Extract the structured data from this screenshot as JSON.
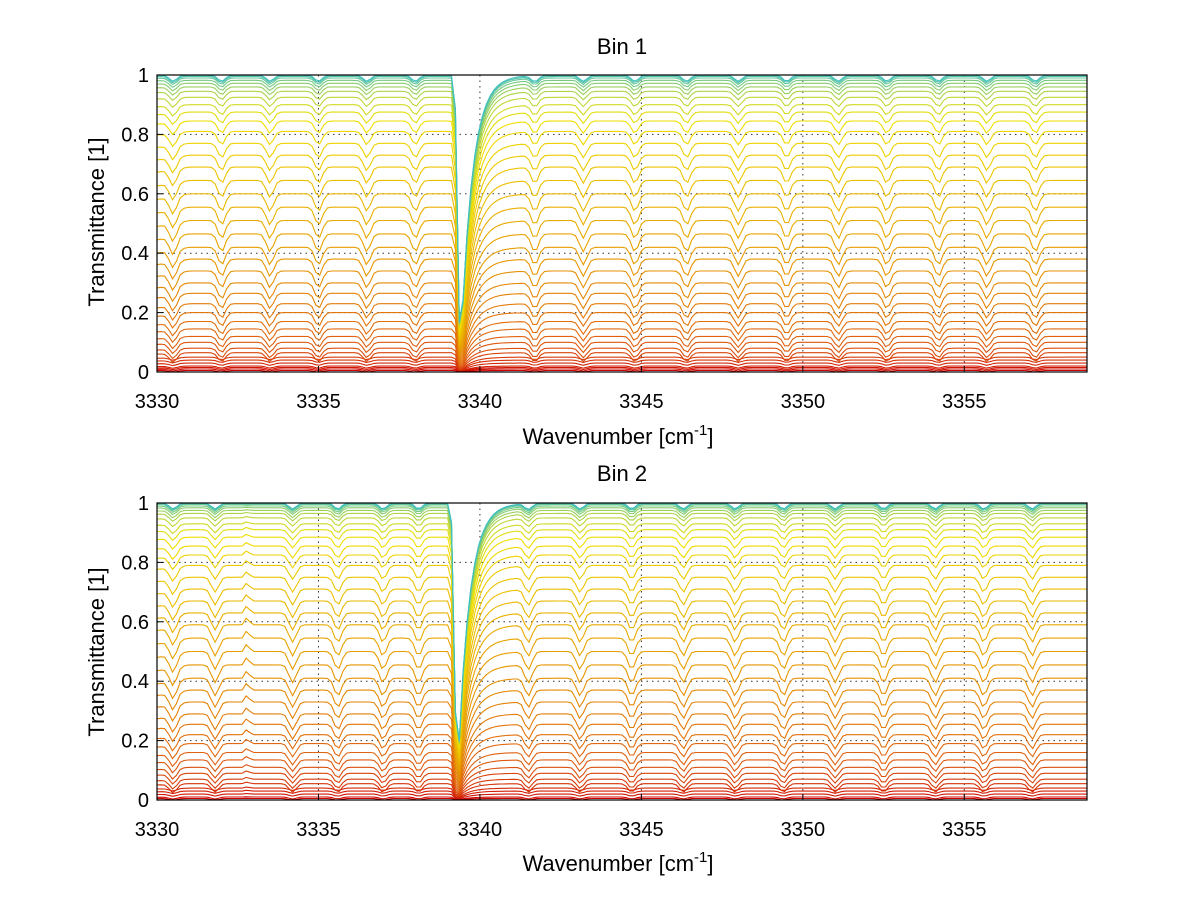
{
  "chart_data": [
    {
      "type": "line",
      "title": "Bin 1",
      "xlabel": "Wavenumber [cm",
      "xlabel_sup": "-1",
      "xlabel_end": "]",
      "ylabel": "Transmittance [1]",
      "xlim": [
        3330,
        3358.8
      ],
      "ylim": [
        0,
        1
      ],
      "xticks": [
        3330,
        3335,
        3340,
        3345,
        3350,
        3355
      ],
      "yticks": [
        0,
        0.2,
        0.4,
        0.6,
        0.8,
        1
      ],
      "ytick_labels": [
        "0",
        "0.2",
        "0.4",
        "0.6",
        "0.8",
        "1"
      ],
      "grid": true,
      "series_count": 40,
      "baseline_levels": [
        0.005,
        0.01,
        0.015,
        0.02,
        0.03,
        0.04,
        0.05,
        0.065,
        0.08,
        0.1,
        0.12,
        0.145,
        0.17,
        0.2,
        0.23,
        0.265,
        0.3,
        0.34,
        0.38,
        0.42,
        0.465,
        0.51,
        0.555,
        0.6,
        0.645,
        0.69,
        0.73,
        0.77,
        0.81,
        0.845,
        0.875,
        0.9,
        0.925,
        0.945,
        0.96,
        0.972,
        0.982,
        0.99,
        0.995,
        0.999
      ],
      "strong_absorption_center": 3339.4,
      "weak_lines": [
        3330.5,
        3332.0,
        3333.5,
        3335.0,
        3336.5,
        3338.0,
        3341.7,
        3343.2,
        3344.8,
        3346.4,
        3348.0,
        3349.5,
        3351.1,
        3352.6,
        3354.2,
        3355.7,
        3357.2
      ],
      "colormap": [
        "#cc0000",
        "#e06010",
        "#e8a000",
        "#f0e000",
        "#40c0c0"
      ]
    },
    {
      "type": "line",
      "title": "Bin 2",
      "xlabel": "Wavenumber [cm",
      "xlabel_sup": "-1",
      "xlabel_end": "]",
      "ylabel": "Transmittance [1]",
      "xlim": [
        3330,
        3358.8
      ],
      "ylim": [
        0,
        1
      ],
      "xticks": [
        3330,
        3335,
        3340,
        3345,
        3350,
        3355
      ],
      "yticks": [
        0,
        0.2,
        0.4,
        0.6,
        0.8,
        1
      ],
      "ytick_labels": [
        "0",
        "0.2",
        "0.4",
        "0.6",
        "0.8",
        "1"
      ],
      "grid": true,
      "series_count": 40,
      "baseline_levels": [
        0.005,
        0.01,
        0.02,
        0.03,
        0.04,
        0.055,
        0.07,
        0.09,
        0.11,
        0.135,
        0.16,
        0.19,
        0.22,
        0.255,
        0.29,
        0.33,
        0.37,
        0.41,
        0.455,
        0.5,
        0.545,
        0.59,
        0.63,
        0.67,
        0.71,
        0.75,
        0.79,
        0.825,
        0.855,
        0.885,
        0.91,
        0.93,
        0.95,
        0.965,
        0.975,
        0.984,
        0.99,
        0.995,
        0.998,
        1.0
      ],
      "strong_absorption_center": 3339.3,
      "spike_center": 3332.8,
      "weak_lines": [
        3330.5,
        3331.8,
        3334.2,
        3335.6,
        3337.0,
        3338.1,
        3341.5,
        3343.1,
        3344.7,
        3346.3,
        3347.9,
        3349.4,
        3351.0,
        3352.5,
        3354.1,
        3355.6,
        3357.1
      ],
      "colormap": [
        "#cc0000",
        "#e06010",
        "#e8a000",
        "#f0e000",
        "#40c0c0"
      ]
    }
  ]
}
